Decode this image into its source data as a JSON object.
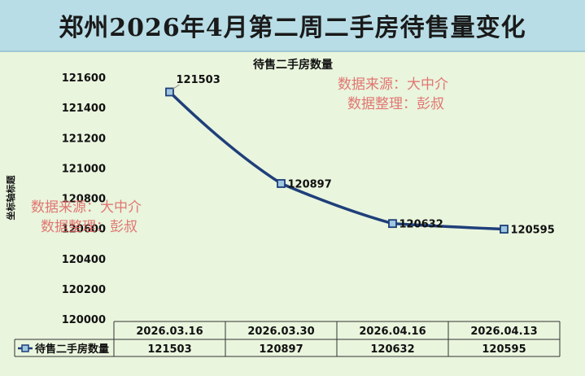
{
  "title": "郑州2026年4月第二周二手房待售量变化",
  "watermarks": [
    {
      "line1": "数据来源：大中介",
      "line2": "数据整理：彭叔"
    },
    {
      "line1": "数据来源：大中介",
      "line2": "数据整理：彭叔"
    }
  ],
  "colors": {
    "line": "#1f3f7a",
    "marker_fill": "#9fc7e0",
    "background": "#e9f5dd",
    "title_bg": "#b8dde6",
    "watermark": "#e06060"
  },
  "chart_data": {
    "type": "line",
    "title": "待售二手房数量",
    "ylabel": "坐标轴标题",
    "ylim": [
      120000,
      121600
    ],
    "yticks": [
      121600,
      121400,
      121200,
      121000,
      120800,
      120600,
      120400,
      120200,
      120000
    ],
    "categories": [
      "2026.03.16",
      "2026.03.30",
      "2026.04.16",
      "2026.04.13"
    ],
    "series": [
      {
        "name": "待售二手房数量",
        "values": [
          121503,
          120897,
          120632,
          120595
        ]
      }
    ],
    "data_labels": [
      "121503",
      "120897",
      "120632",
      "120595"
    ],
    "data_table": true,
    "grid": false
  }
}
